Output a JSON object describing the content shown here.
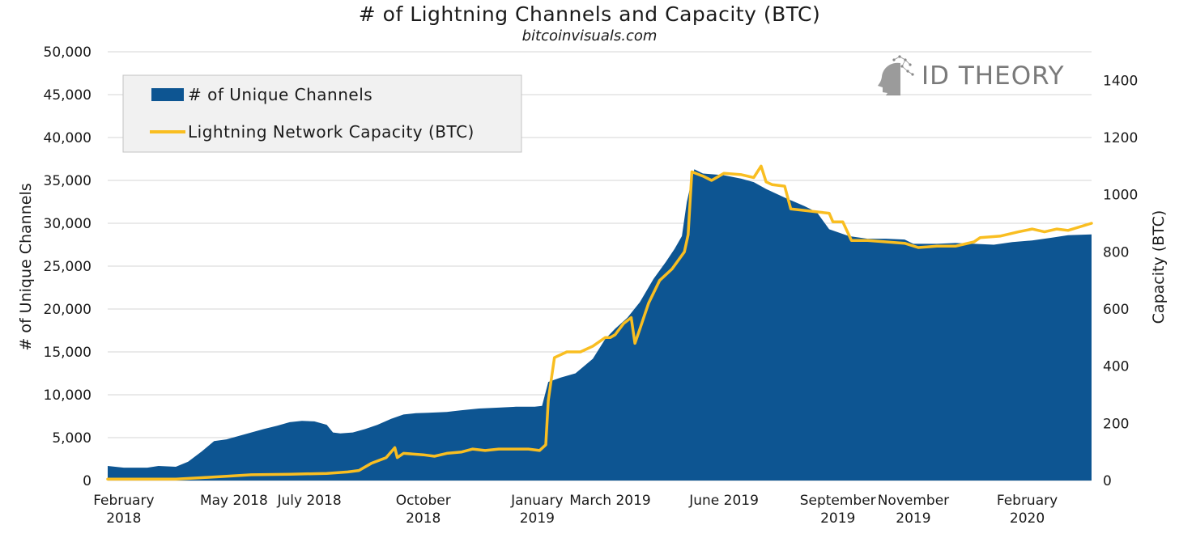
{
  "chart_data": {
    "type": "area",
    "title": "# of Lightning Channels and Capacity (BTC)",
    "subtitle": "bitcoinvisuals.com",
    "ylabel": "# of Unique Channels",
    "y2label": "Capacity (BTC)",
    "ylim": [
      0,
      50000
    ],
    "y2lim": [
      0,
      1500
    ],
    "xlim": [
      "2018-01-19",
      "2020-03-24"
    ],
    "yticks": [
      "0",
      "5,000",
      "10,000",
      "15,000",
      "20,000",
      "25,000",
      "30,000",
      "35,000",
      "40,000",
      "45,000",
      "50,000"
    ],
    "y2ticks": [
      "0",
      "200",
      "400",
      "600",
      "800",
      "1000",
      "1200",
      "1400"
    ],
    "xticks": [
      {
        "date": "2018-02-01",
        "label": [
          "February",
          "2018"
        ]
      },
      {
        "date": "2018-05-01",
        "label": [
          "May 2018"
        ]
      },
      {
        "date": "2018-07-01",
        "label": [
          "July 2018"
        ]
      },
      {
        "date": "2018-10-01",
        "label": [
          "October",
          "2018"
        ]
      },
      {
        "date": "2019-01-01",
        "label": [
          "January",
          "2019"
        ]
      },
      {
        "date": "2019-03-01",
        "label": [
          "March 2019"
        ]
      },
      {
        "date": "2019-06-01",
        "label": [
          "June 2019"
        ]
      },
      {
        "date": "2019-09-01",
        "label": [
          "September",
          "2019"
        ]
      },
      {
        "date": "2019-11-01",
        "label": [
          "November",
          "2019"
        ]
      },
      {
        "date": "2020-02-01",
        "label": [
          "February",
          "2020"
        ]
      }
    ],
    "grid": true,
    "legend_position": "top-left",
    "series": [
      {
        "name": "# of Unique Channels",
        "axis": "left",
        "kind": "area",
        "color": "#0d5592",
        "points": [
          [
            "2018-01-19",
            1700
          ],
          [
            "2018-02-01",
            1500
          ],
          [
            "2018-02-20",
            1500
          ],
          [
            "2018-03-01",
            1700
          ],
          [
            "2018-03-15",
            1600
          ],
          [
            "2018-03-25",
            2200
          ],
          [
            "2018-04-05",
            3400
          ],
          [
            "2018-04-15",
            4600
          ],
          [
            "2018-04-25",
            4800
          ],
          [
            "2018-05-05",
            5200
          ],
          [
            "2018-05-15",
            5600
          ],
          [
            "2018-05-25",
            6000
          ],
          [
            "2018-06-05",
            6400
          ],
          [
            "2018-06-15",
            6800
          ],
          [
            "2018-06-25",
            6950
          ],
          [
            "2018-07-05",
            6900
          ],
          [
            "2018-07-15",
            6500
          ],
          [
            "2018-07-20",
            5600
          ],
          [
            "2018-07-26",
            5500
          ],
          [
            "2018-08-05",
            5600
          ],
          [
            "2018-08-15",
            6000
          ],
          [
            "2018-08-25",
            6500
          ],
          [
            "2018-09-05",
            7200
          ],
          [
            "2018-09-15",
            7700
          ],
          [
            "2018-09-25",
            7850
          ],
          [
            "2018-10-05",
            7900
          ],
          [
            "2018-10-20",
            8000
          ],
          [
            "2018-11-01",
            8200
          ],
          [
            "2018-11-15",
            8400
          ],
          [
            "2018-12-01",
            8500
          ],
          [
            "2018-12-15",
            8600
          ],
          [
            "2018-12-30",
            8600
          ],
          [
            "2019-01-05",
            8700
          ],
          [
            "2019-01-10",
            11500
          ],
          [
            "2019-01-20",
            12000
          ],
          [
            "2019-02-01",
            12500
          ],
          [
            "2019-02-15",
            14200
          ],
          [
            "2019-02-25",
            16500
          ],
          [
            "2019-03-05",
            17700
          ],
          [
            "2019-03-15",
            19000
          ],
          [
            "2019-03-25",
            20800
          ],
          [
            "2019-04-05",
            23500
          ],
          [
            "2019-04-15",
            25500
          ],
          [
            "2019-04-22",
            27000
          ],
          [
            "2019-04-28",
            28500
          ],
          [
            "2019-05-02",
            32500
          ],
          [
            "2019-05-08",
            36300
          ],
          [
            "2019-05-15",
            35800
          ],
          [
            "2019-06-01",
            35600
          ],
          [
            "2019-06-15",
            35200
          ],
          [
            "2019-06-25",
            34800
          ],
          [
            "2019-07-05",
            34000
          ],
          [
            "2019-07-20",
            33000
          ],
          [
            "2019-08-05",
            32000
          ],
          [
            "2019-08-15",
            31300
          ],
          [
            "2019-08-25",
            29300
          ],
          [
            "2019-09-10",
            28500
          ],
          [
            "2019-09-25",
            28200
          ],
          [
            "2019-10-10",
            28200
          ],
          [
            "2019-10-25",
            28100
          ],
          [
            "2019-11-01",
            27600
          ],
          [
            "2019-11-20",
            27600
          ],
          [
            "2019-12-05",
            27700
          ],
          [
            "2019-12-20",
            27600
          ],
          [
            "2020-01-05",
            27500
          ],
          [
            "2020-01-20",
            27800
          ],
          [
            "2020-02-05",
            28000
          ],
          [
            "2020-02-20",
            28300
          ],
          [
            "2020-03-05",
            28600
          ],
          [
            "2020-03-24",
            28700
          ]
        ]
      },
      {
        "name": "Lightning Network Capacity (BTC)",
        "axis": "right",
        "kind": "line",
        "color": "#f9be21",
        "points": [
          [
            "2018-01-19",
            5
          ],
          [
            "2018-03-15",
            5
          ],
          [
            "2018-04-05",
            10
          ],
          [
            "2018-04-25",
            15
          ],
          [
            "2018-05-15",
            20
          ],
          [
            "2018-06-15",
            22
          ],
          [
            "2018-07-15",
            25
          ],
          [
            "2018-08-01",
            30
          ],
          [
            "2018-08-10",
            35
          ],
          [
            "2018-08-20",
            60
          ],
          [
            "2018-09-01",
            80
          ],
          [
            "2018-09-08",
            115
          ],
          [
            "2018-09-10",
            80
          ],
          [
            "2018-09-15",
            95
          ],
          [
            "2018-10-01",
            90
          ],
          [
            "2018-10-10",
            85
          ],
          [
            "2018-10-20",
            95
          ],
          [
            "2018-11-01",
            100
          ],
          [
            "2018-11-10",
            110
          ],
          [
            "2018-11-20",
            105
          ],
          [
            "2018-12-01",
            110
          ],
          [
            "2018-12-25",
            110
          ],
          [
            "2019-01-03",
            105
          ],
          [
            "2019-01-08",
            125
          ],
          [
            "2019-01-10",
            280
          ],
          [
            "2019-01-12",
            340
          ],
          [
            "2019-01-15",
            430
          ],
          [
            "2019-01-25",
            450
          ],
          [
            "2019-02-05",
            450
          ],
          [
            "2019-02-15",
            470
          ],
          [
            "2019-02-25",
            500
          ],
          [
            "2019-03-01",
            500
          ],
          [
            "2019-03-05",
            510
          ],
          [
            "2019-03-12",
            550
          ],
          [
            "2019-03-18",
            570
          ],
          [
            "2019-03-21",
            480
          ],
          [
            "2019-03-25",
            530
          ],
          [
            "2019-04-01",
            620
          ],
          [
            "2019-04-10",
            700
          ],
          [
            "2019-04-20",
            740
          ],
          [
            "2019-04-30",
            800
          ],
          [
            "2019-05-03",
            860
          ],
          [
            "2019-05-06",
            1080
          ],
          [
            "2019-05-15",
            1065
          ],
          [
            "2019-05-22",
            1050
          ],
          [
            "2019-06-01",
            1075
          ],
          [
            "2019-06-15",
            1070
          ],
          [
            "2019-06-25",
            1060
          ],
          [
            "2019-07-01",
            1100
          ],
          [
            "2019-07-05",
            1045
          ],
          [
            "2019-07-10",
            1035
          ],
          [
            "2019-07-20",
            1030
          ],
          [
            "2019-07-25",
            950
          ],
          [
            "2019-08-05",
            945
          ],
          [
            "2019-08-15",
            940
          ],
          [
            "2019-08-25",
            935
          ],
          [
            "2019-08-28",
            905
          ],
          [
            "2019-09-05",
            905
          ],
          [
            "2019-09-12",
            840
          ],
          [
            "2019-09-25",
            840
          ],
          [
            "2019-10-10",
            835
          ],
          [
            "2019-10-25",
            830
          ],
          [
            "2019-11-05",
            815
          ],
          [
            "2019-11-20",
            820
          ],
          [
            "2019-12-05",
            820
          ],
          [
            "2019-12-20",
            835
          ],
          [
            "2019-12-25",
            850
          ],
          [
            "2020-01-10",
            855
          ],
          [
            "2020-01-25",
            870
          ],
          [
            "2020-02-05",
            880
          ],
          [
            "2020-02-15",
            870
          ],
          [
            "2020-02-25",
            880
          ],
          [
            "2020-03-05",
            875
          ],
          [
            "2020-03-24",
            900
          ]
        ]
      }
    ]
  },
  "brand": {
    "name": "ID THEORY",
    "icon": "head-profile-icon",
    "color": "#7a7a7a"
  }
}
